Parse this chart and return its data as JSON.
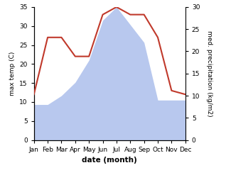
{
  "months": [
    "Jan",
    "Feb",
    "Mar",
    "Apr",
    "May",
    "Jun",
    "Jul",
    "Aug",
    "Sep",
    "Oct",
    "Nov",
    "Dec"
  ],
  "temperature": [
    12,
    27,
    27,
    22,
    22,
    33,
    35,
    33,
    33,
    27,
    13,
    12
  ],
  "precipitation": [
    8,
    8,
    10,
    13,
    18,
    27,
    30,
    26,
    22,
    9,
    9,
    9
  ],
  "temp_color": "#c0392b",
  "precip_color": "#b8c8ee",
  "temp_ylim": [
    0,
    35
  ],
  "precip_ylim": [
    0,
    30
  ],
  "temp_yticks": [
    0,
    5,
    10,
    15,
    20,
    25,
    30,
    35
  ],
  "precip_yticks": [
    0,
    5,
    10,
    15,
    20,
    25,
    30
  ],
  "xlabel": "date (month)",
  "ylabel_left": "max temp (C)",
  "ylabel_right": "med. precipitation (kg/m2)",
  "background_color": "#ffffff"
}
